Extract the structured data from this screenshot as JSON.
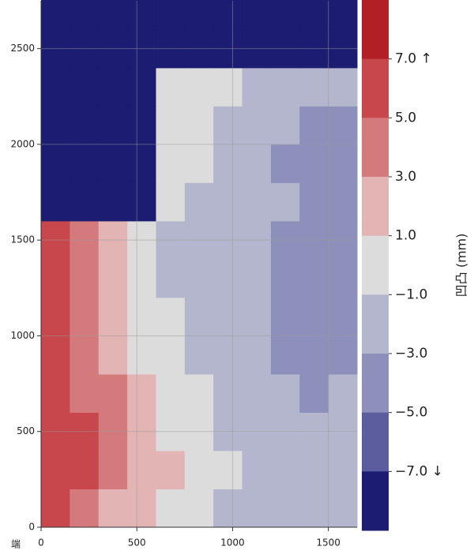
{
  "chart_data": {
    "type": "heatmap",
    "colorbar_label": "凹凸 (mm)",
    "corner_label": "端",
    "x": [
      75,
      225,
      375,
      525,
      675,
      825,
      975,
      1125,
      1275,
      1425,
      1575
    ],
    "y": [
      100,
      300,
      500,
      700,
      900,
      1100,
      1300,
      1500,
      1700,
      1900,
      2100,
      2300,
      2500,
      2700
    ],
    "z": [
      [
        6,
        4,
        2,
        2,
        0,
        0,
        -2,
        -2,
        -2,
        -2,
        -2
      ],
      [
        6,
        6,
        4,
        2,
        2,
        0,
        0,
        -2,
        -2,
        -2,
        -2
      ],
      [
        6,
        6,
        4,
        2,
        0,
        0,
        -2,
        -2,
        -2,
        -2,
        -2
      ],
      [
        6,
        4,
        4,
        2,
        0,
        0,
        -2,
        -2,
        -2,
        -4,
        -2
      ],
      [
        6,
        4,
        2,
        0,
        0,
        -2,
        -2,
        -2,
        -4,
        -4,
        -4
      ],
      [
        6,
        4,
        2,
        0,
        0,
        -2,
        -2,
        -2,
        -4,
        -4,
        -4
      ],
      [
        6,
        4,
        2,
        0,
        -2,
        -2,
        -2,
        -2,
        -4,
        -4,
        -4
      ],
      [
        6,
        4,
        2,
        0,
        -2,
        -2,
        -2,
        -2,
        -4,
        -4,
        -4
      ],
      [
        -8,
        -8,
        -8,
        -8,
        0,
        -2,
        -2,
        -2,
        -2,
        -4,
        -4
      ],
      [
        -8,
        -8,
        -8,
        -8,
        0,
        0,
        -2,
        -2,
        -4,
        -4,
        -4
      ],
      [
        -8,
        -8,
        -8,
        -8,
        0,
        0,
        -2,
        -2,
        -2,
        -4,
        -4
      ],
      [
        -8,
        -8,
        -8,
        -8,
        0,
        0,
        0,
        -2,
        -2,
        -2,
        -2
      ],
      [
        -8,
        -8,
        -8,
        -8,
        -8,
        -8,
        -8,
        -8,
        -8,
        -8,
        -8
      ],
      [
        -8,
        -8,
        -8,
        -8,
        -8,
        -8,
        -8,
        -8,
        -8,
        -8,
        -8
      ]
    ],
    "levels": [
      {
        "value": 7,
        "label": "7.0 ↑"
      },
      {
        "value": 5,
        "label": "5.0"
      },
      {
        "value": 3,
        "label": "3.0"
      },
      {
        "value": 1,
        "label": "1.0"
      },
      {
        "value": -1,
        "label": "−1.0"
      },
      {
        "value": -3,
        "label": "−3.0"
      },
      {
        "value": -5,
        "label": "−5.0"
      },
      {
        "value": -7,
        "label": "−7.0 ↓"
      }
    ],
    "colors": [
      "#b22025",
      "#c8474c",
      "#d47a7c",
      "#e3b4b4",
      "#dcdcdc",
      "#b3b6cc",
      "#8d90bb",
      "#5b5d9e",
      "#1b1c72"
    ],
    "xlim": [
      0,
      1650
    ],
    "ylim": [
      0,
      2750
    ],
    "xticks": [
      0,
      500,
      1000,
      1500
    ],
    "yticks": [
      0,
      500,
      1000,
      1500,
      2000,
      2500
    ],
    "grid": true
  }
}
